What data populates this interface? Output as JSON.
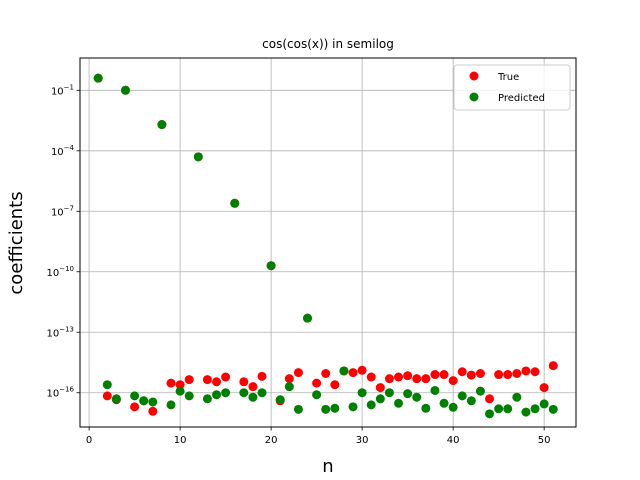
{
  "chart_data": {
    "type": "scatter",
    "title": "cos(cos(x)) in semilog",
    "xlabel": "n",
    "ylabel": "coefficients",
    "xlim": [
      -1,
      53.5
    ],
    "ylim": [
      2e-18,
      4
    ],
    "y_scale": "log",
    "x_ticks": [
      0,
      10,
      20,
      30,
      40,
      50
    ],
    "y_ticks": [
      {
        "value": 0.1,
        "base": "10",
        "exp": "−1"
      },
      {
        "value": 0.0001,
        "base": "10",
        "exp": "−4"
      },
      {
        "value": 1e-07,
        "base": "10",
        "exp": "−7"
      },
      {
        "value": 1e-10,
        "base": "10",
        "exp": "−10"
      },
      {
        "value": 1e-13,
        "base": "10",
        "exp": "−13"
      },
      {
        "value": 1e-16,
        "base": "10",
        "exp": "−16"
      }
    ],
    "grid": true,
    "legend_position": "top-right",
    "series": [
      {
        "name": "True",
        "color": "#ff0000",
        "points": [
          [
            1,
            0.4
          ],
          [
            2,
            7e-17
          ],
          [
            3,
            4.5e-17
          ],
          [
            4,
            0.1
          ],
          [
            5,
            2e-17
          ],
          [
            6,
            4e-17
          ],
          [
            7,
            1.2e-17
          ],
          [
            8,
            0.002
          ],
          [
            9,
            3e-16
          ],
          [
            10,
            2.5e-16
          ],
          [
            11,
            4.5e-16
          ],
          [
            12,
            5e-05
          ],
          [
            13,
            4.5e-16
          ],
          [
            14,
            3.5e-16
          ],
          [
            15,
            6e-16
          ],
          [
            16,
            2.5e-07
          ],
          [
            17,
            3.5e-16
          ],
          [
            18,
            2e-16
          ],
          [
            19,
            6.5e-16
          ],
          [
            20,
            2e-10
          ],
          [
            21,
            4e-17
          ],
          [
            22,
            5e-16
          ],
          [
            23,
            1e-15
          ],
          [
            24,
            5e-13
          ],
          [
            25,
            3e-16
          ],
          [
            26,
            9e-16
          ],
          [
            27,
            2.5e-16
          ],
          [
            28,
            1.2e-15
          ],
          [
            29,
            1e-15
          ],
          [
            30,
            1.3e-15
          ],
          [
            31,
            6e-16
          ],
          [
            32,
            1.8e-16
          ],
          [
            33,
            5e-16
          ],
          [
            34,
            6e-16
          ],
          [
            35,
            7e-16
          ],
          [
            36,
            5e-16
          ],
          [
            37,
            5e-16
          ],
          [
            38,
            8e-16
          ],
          [
            39,
            8e-16
          ],
          [
            40,
            4e-16
          ],
          [
            41,
            1.1e-15
          ],
          [
            42,
            7.5e-16
          ],
          [
            43,
            9e-16
          ],
          [
            44,
            5e-17
          ],
          [
            45,
            8e-16
          ],
          [
            46,
            8e-16
          ],
          [
            47,
            9e-16
          ],
          [
            48,
            1.2e-15
          ],
          [
            49,
            1.1e-15
          ],
          [
            50,
            1.8e-16
          ],
          [
            51,
            2.2e-15
          ]
        ]
      },
      {
        "name": "Predicted",
        "color": "#008000",
        "points": [
          [
            1,
            0.4
          ],
          [
            2,
            2.5e-16
          ],
          [
            3,
            5e-17
          ],
          [
            4,
            0.1
          ],
          [
            5,
            7e-17
          ],
          [
            6,
            4e-17
          ],
          [
            7,
            3.5e-17
          ],
          [
            8,
            0.002
          ],
          [
            9,
            2.5e-17
          ],
          [
            10,
            1.2e-16
          ],
          [
            11,
            7e-17
          ],
          [
            12,
            5e-05
          ],
          [
            13,
            5e-17
          ],
          [
            14,
            8e-17
          ],
          [
            15,
            1e-16
          ],
          [
            16,
            2.5e-07
          ],
          [
            17,
            1e-16
          ],
          [
            18,
            6e-17
          ],
          [
            19,
            1e-16
          ],
          [
            20,
            2e-10
          ],
          [
            21,
            4.5e-17
          ],
          [
            22,
            2e-16
          ],
          [
            23,
            1.5e-17
          ],
          [
            24,
            5e-13
          ],
          [
            25,
            8e-17
          ],
          [
            26,
            1.5e-17
          ],
          [
            27,
            1.7e-17
          ],
          [
            28,
            1.2e-15
          ],
          [
            29,
            2e-17
          ],
          [
            30,
            1e-16
          ],
          [
            31,
            2.5e-17
          ],
          [
            32,
            5e-17
          ],
          [
            33,
            1e-16
          ],
          [
            34,
            3e-17
          ],
          [
            35,
            9e-17
          ],
          [
            36,
            6e-17
          ],
          [
            37,
            1.7e-17
          ],
          [
            38,
            1.3e-16
          ],
          [
            39,
            3e-17
          ],
          [
            40,
            1.9e-17
          ],
          [
            41,
            7e-17
          ],
          [
            42,
            4e-17
          ],
          [
            43,
            1.2e-16
          ],
          [
            44,
            9e-18
          ],
          [
            45,
            1.6e-17
          ],
          [
            46,
            1.6e-17
          ],
          [
            47,
            6e-17
          ],
          [
            48,
            1.1e-17
          ],
          [
            49,
            1.6e-17
          ],
          [
            50,
            2.8e-17
          ],
          [
            51,
            1.5e-17
          ]
        ]
      }
    ]
  }
}
